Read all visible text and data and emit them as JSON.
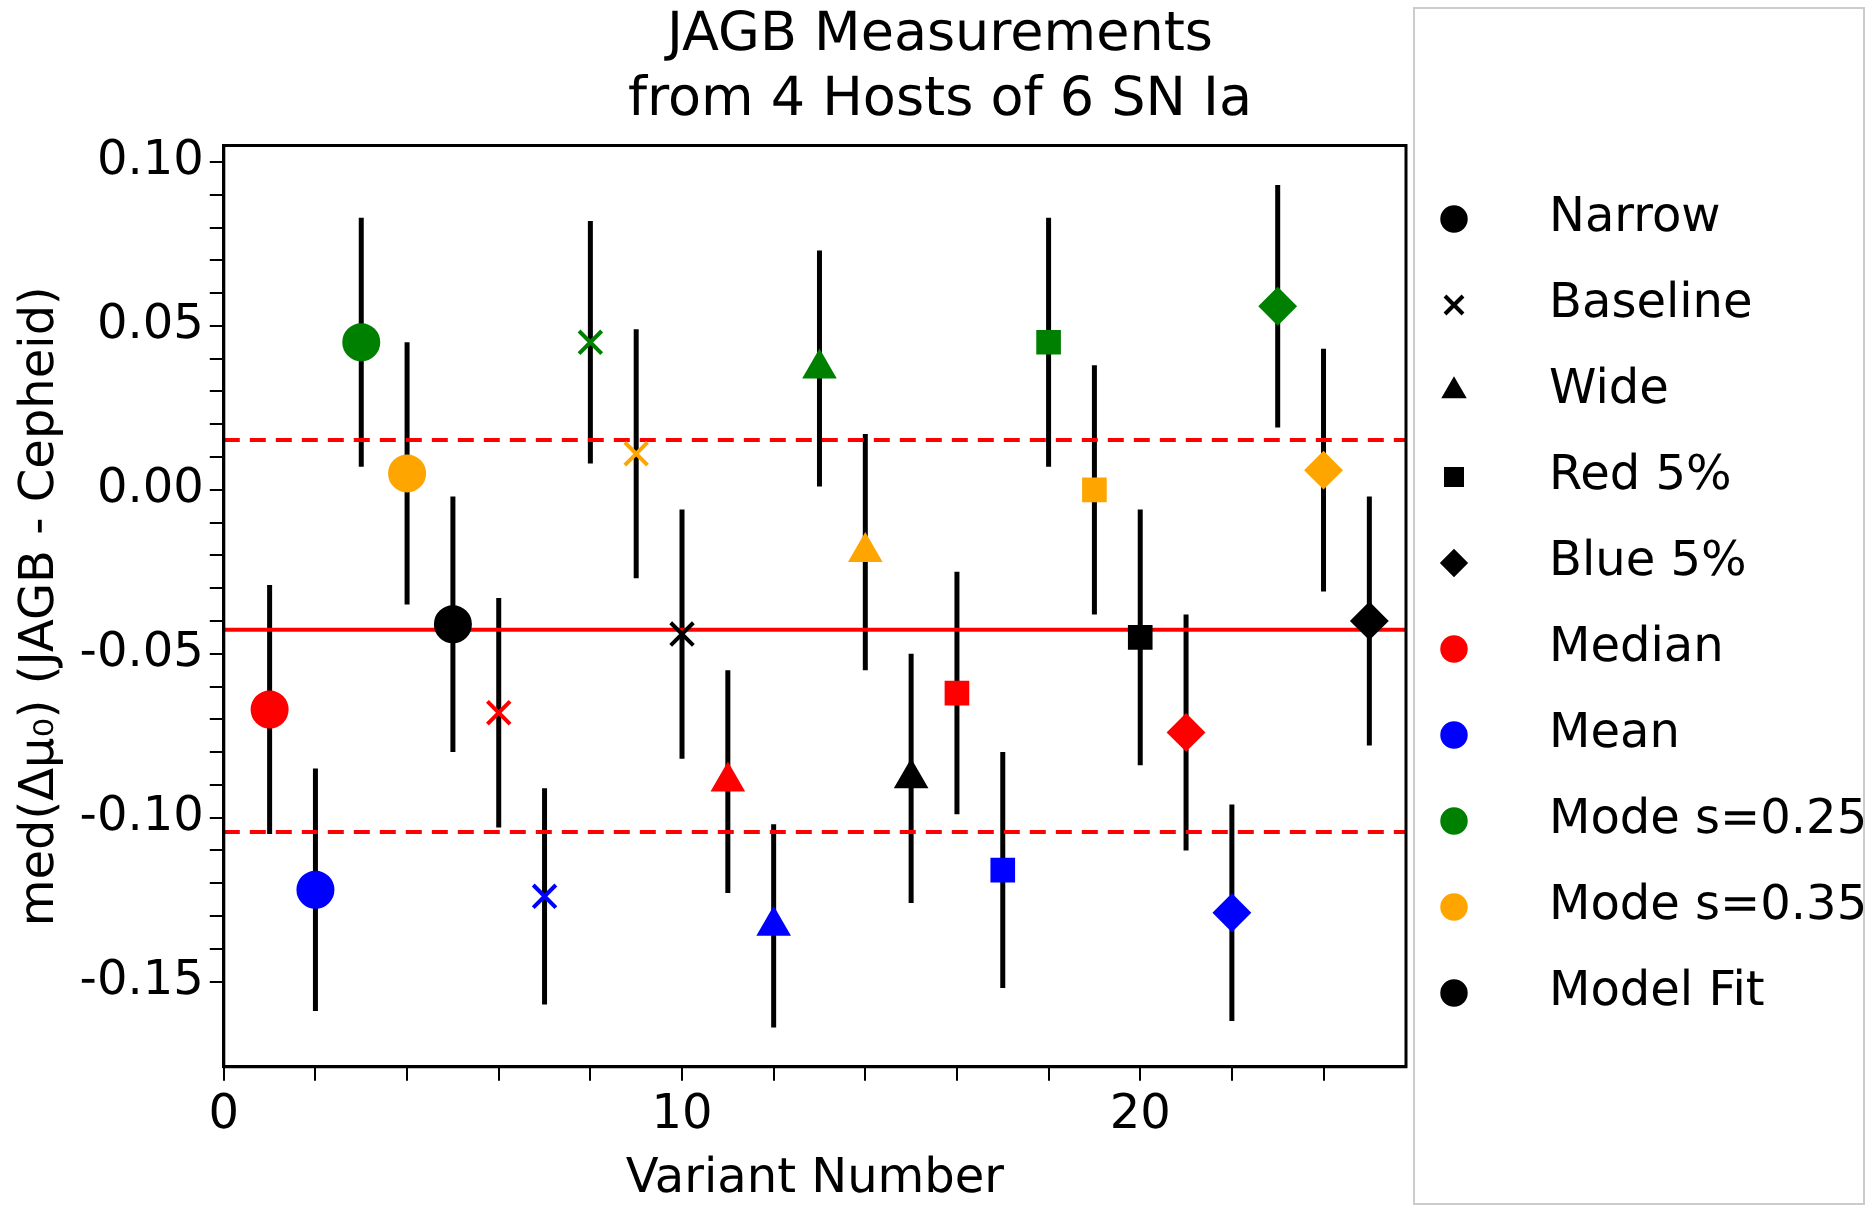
{
  "chart_data": {
    "type": "scatter",
    "title": "JAGB Measurements\nfrom 4 Hosts of 6 SN Ia",
    "xlabel": "Variant Number",
    "ylabel": "med(Δμ₀) (JAGB - Cepheid)",
    "xlim": [
      0,
      25.8
    ],
    "ylim": [
      -0.176,
      0.105
    ],
    "xticks": [
      0,
      {
        "value": 2,
        "label": null
      },
      {
        "value": 4,
        "label": null
      },
      {
        "value": 6,
        "label": null
      },
      {
        "value": 8,
        "label": null
      },
      10,
      {
        "value": 12,
        "label": null
      },
      {
        "value": 14,
        "label": null
      },
      {
        "value": 16,
        "label": null
      },
      {
        "value": 18,
        "label": null
      },
      20,
      {
        "value": 22,
        "label": null
      },
      {
        "value": 24,
        "label": null
      }
    ],
    "yticks": [
      {
        "value": -0.15,
        "label": "-0.15"
      },
      {
        "value": -0.14,
        "label": null
      },
      {
        "value": -0.13,
        "label": null
      },
      {
        "value": -0.12,
        "label": null
      },
      {
        "value": -0.11,
        "label": null
      },
      {
        "value": -0.1,
        "label": "-0.10"
      },
      {
        "value": -0.09,
        "label": null
      },
      {
        "value": -0.08,
        "label": null
      },
      {
        "value": -0.07,
        "label": null
      },
      {
        "value": -0.06,
        "label": null
      },
      {
        "value": -0.05,
        "label": "-0.05"
      },
      {
        "value": -0.04,
        "label": null
      },
      {
        "value": -0.03,
        "label": null
      },
      {
        "value": -0.02,
        "label": null
      },
      {
        "value": -0.01,
        "label": null
      },
      {
        "value": 0,
        "label": "0.00"
      },
      {
        "value": 0.01,
        "label": null
      },
      {
        "value": 0.02,
        "label": null
      },
      {
        "value": 0.03,
        "label": null
      },
      {
        "value": 0.04,
        "label": null
      },
      {
        "value": 0.05,
        "label": "0.05"
      },
      {
        "value": 0.06,
        "label": null
      },
      {
        "value": 0.07,
        "label": null
      },
      {
        "value": 0.08,
        "label": null
      },
      {
        "value": 0.09,
        "label": null
      },
      {
        "value": 0.1,
        "label": "0.10"
      }
    ],
    "grid": false,
    "legend": "right",
    "ref_lines": [
      {
        "axis": "y",
        "value": -0.0427,
        "label": null,
        "color": "#ff0000",
        "line_style": "solid"
      },
      {
        "axis": "y",
        "value": 0.0152,
        "label": null,
        "color": "#ff0000",
        "line_style": "dashed"
      },
      {
        "axis": "y",
        "value": -0.1044,
        "label": null,
        "color": "#ff0000",
        "line_style": "dashed"
      }
    ],
    "series": [
      {
        "name": "Narrow",
        "color": "#000000",
        "marker": "circle",
        "x": [
          1,
          2,
          3,
          4,
          5
        ],
        "values": [
          -0.067,
          -0.122,
          0.045,
          0.005,
          -0.041
        ],
        "errors": [
          0.038,
          0.037,
          0.038,
          0.04,
          0.039
        ],
        "colors": [
          "#ff0000",
          "#0000ff",
          "#008000",
          "#ffa500",
          "#000000"
        ]
      },
      {
        "name": "Baseline",
        "color": "#000000",
        "marker": "cross",
        "x": [
          6,
          7,
          8,
          9,
          10
        ],
        "values": [
          -0.068,
          -0.124,
          0.045,
          0.011,
          -0.044
        ],
        "errors": [
          0.035,
          0.033,
          0.037,
          0.038,
          0.038
        ],
        "colors": [
          "#ff0000",
          "#0000ff",
          "#008000",
          "#ffa500",
          "#000000"
        ]
      },
      {
        "name": "Wide",
        "color": "#000000",
        "marker": "triangle",
        "x": [
          11,
          12,
          13,
          14,
          15
        ],
        "values": [
          -0.089,
          -0.133,
          0.037,
          -0.019,
          -0.088
        ],
        "errors": [
          0.034,
          0.031,
          0.036,
          0.036,
          0.038
        ],
        "colors": [
          "#ff0000",
          "#0000ff",
          "#008000",
          "#ffa500",
          "#000000"
        ]
      },
      {
        "name": "Red 5%",
        "color": "#000000",
        "marker": "square",
        "x": [
          16,
          17,
          18,
          19,
          20
        ],
        "values": [
          -0.062,
          -0.116,
          0.045,
          0.0,
          -0.045
        ],
        "errors": [
          0.037,
          0.036,
          0.038,
          0.038,
          0.039
        ],
        "colors": [
          "#ff0000",
          "#0000ff",
          "#008000",
          "#ffa500",
          "#000000"
        ]
      },
      {
        "name": "Blue 5%",
        "color": "#000000",
        "marker": "diamond",
        "x": [
          21,
          22,
          23,
          24,
          25
        ],
        "values": [
          -0.074,
          -0.129,
          0.056,
          0.006,
          -0.04
        ],
        "errors": [
          0.036,
          0.033,
          0.037,
          0.037,
          0.038
        ],
        "colors": [
          "#ff0000",
          "#0000ff",
          "#008000",
          "#ffa500",
          "#000000"
        ]
      },
      {
        "name": "Median",
        "color": "#ff0000",
        "marker": "circle"
      },
      {
        "name": "Mean",
        "color": "#0000ff",
        "marker": "circle"
      },
      {
        "name": "Mode s=0.25",
        "color": "#008000",
        "marker": "circle"
      },
      {
        "name": "Mode s=0.35",
        "color": "#ffa500",
        "marker": "circle"
      },
      {
        "name": "Model Fit",
        "color": "#000000",
        "marker": "circle"
      }
    ]
  }
}
